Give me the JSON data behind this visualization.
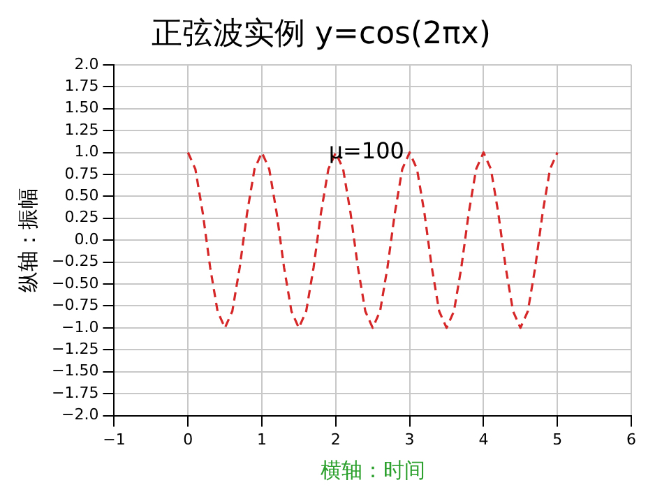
{
  "chart_data": {
    "type": "line",
    "title": "正弦波实例 y=cos(2πx)",
    "xlabel": "横轴：时间",
    "ylabel": "纵轴：振幅",
    "annotations": [
      {
        "text": "μ=100",
        "x": 2,
        "y": 1
      }
    ],
    "series": [
      {
        "color": "#d62728",
        "x": [
          0,
          0.1,
          0.2,
          0.3,
          0.4,
          0.5,
          0.6,
          0.7,
          0.8,
          0.9,
          1,
          1.1,
          1.2,
          1.3,
          1.4,
          1.5,
          1.6,
          1.7,
          1.8,
          1.9,
          2,
          2.1,
          2.2,
          2.3,
          2.4,
          2.5,
          2.6,
          2.7,
          2.8,
          2.9,
          3,
          3.1,
          3.2,
          3.3,
          3.4,
          3.5,
          3.6,
          3.7,
          3.8,
          3.9,
          4,
          4.1,
          4.2,
          4.3,
          4.4,
          4.5,
          4.6,
          4.7,
          4.8,
          4.9,
          5
        ],
        "values": [
          1,
          0.81,
          0.31,
          -0.31,
          -0.81,
          -1,
          -0.81,
          -0.31,
          0.31,
          0.81,
          1,
          0.81,
          0.31,
          -0.31,
          -0.81,
          -1,
          -0.81,
          -0.31,
          0.31,
          0.81,
          1,
          0.81,
          0.31,
          -0.31,
          -0.81,
          -1,
          -0.81,
          -0.31,
          0.31,
          0.81,
          1,
          0.81,
          0.31,
          -0.31,
          -0.81,
          -1,
          -0.81,
          -0.31,
          0.31,
          0.81,
          1,
          0.81,
          0.31,
          -0.31,
          -0.81,
          -1,
          -0.81,
          -0.31,
          0.31,
          0.81,
          1
        ]
      }
    ],
    "xlim": [
      -1,
      6
    ],
    "xticks": [
      {
        "value": -1,
        "label": "−1"
      },
      0,
      1,
      2,
      3,
      4,
      5,
      6
    ],
    "ylim": [
      -2,
      2
    ],
    "yticks": [
      {
        "value": -2,
        "label": "−2.0"
      },
      {
        "value": -1.75,
        "label": "−1.75"
      },
      {
        "value": -1.5,
        "label": "−1.50"
      },
      {
        "value": -1.25,
        "label": "−1.25"
      },
      {
        "value": -1,
        "label": "−1.0"
      },
      {
        "value": -0.75,
        "label": "−0.75"
      },
      {
        "value": -0.5,
        "label": "−0.50"
      },
      {
        "value": -0.25,
        "label": "−0.25"
      },
      {
        "value": 0,
        "label": "0.0"
      },
      0.25,
      {
        "value": 0.5,
        "label": "0.50"
      },
      0.75,
      {
        "value": 1,
        "label": "1.0"
      },
      1.25,
      {
        "value": 1.5,
        "label": "1.50"
      },
      1.75,
      {
        "value": 2,
        "label": "2.0"
      }
    ],
    "grid": true,
    "legend": false,
    "marker": "none",
    "line_style": "dashed"
  }
}
